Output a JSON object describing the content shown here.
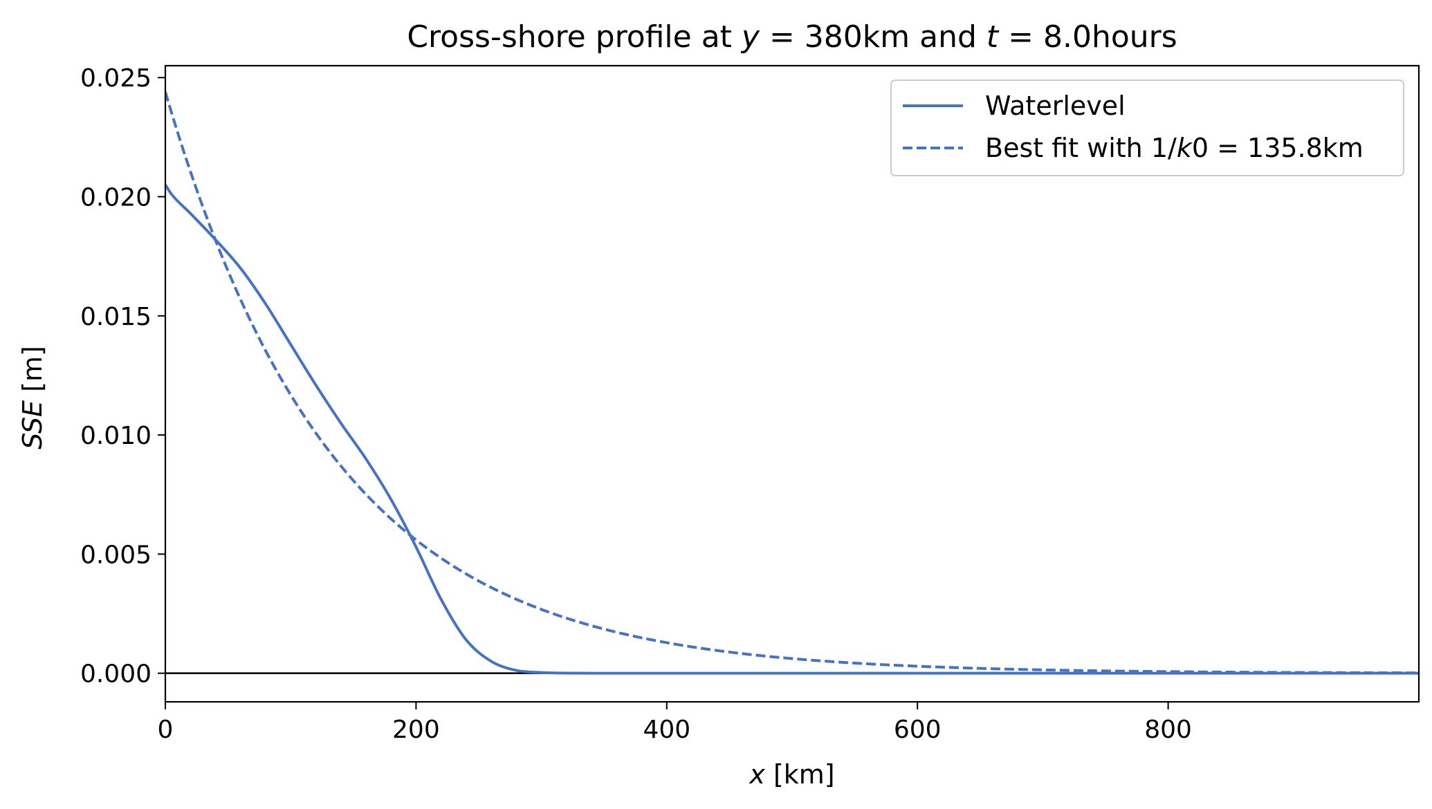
{
  "chart_data": {
    "type": "line",
    "title_parts": {
      "prefix": "Cross-shore profile at ",
      "y_var": "y",
      "y_value": " = 380km and ",
      "t_var": "t",
      "t_value": " = 8.0hours"
    },
    "xlabel_var": "x",
    "xlabel_unit": " [km]",
    "ylabel_var": "SSE",
    "ylabel_unit": " [m]",
    "xlim": [
      0,
      1000
    ],
    "ylim": [
      -0.0012,
      0.0255
    ],
    "xticks": [
      0,
      200,
      400,
      600,
      800
    ],
    "xtick_labels": [
      "0",
      "200",
      "400",
      "600",
      "800"
    ],
    "yticks": [
      0.0,
      0.005,
      0.01,
      0.015,
      0.02,
      0.025
    ],
    "ytick_labels": [
      "0.000",
      "0.005",
      "0.010",
      "0.015",
      "0.020",
      "0.025"
    ],
    "grid": false,
    "legend_position": "top-right",
    "color": "#4472C4",
    "zero_line": true,
    "series": [
      {
        "name": "Waterlevel",
        "style": "solid",
        "x": [
          0,
          5,
          20,
          40,
          60,
          80,
          100,
          120,
          140,
          160,
          180,
          200,
          220,
          240,
          260,
          280,
          300,
          320,
          340,
          400,
          500,
          600,
          700,
          800,
          900,
          1000
        ],
        "y": [
          0.0205,
          0.0201,
          0.0193,
          0.0182,
          0.017,
          0.0155,
          0.0138,
          0.0121,
          0.0105,
          0.009,
          0.0073,
          0.0053,
          0.0031,
          0.0014,
          0.0005,
          0.00012,
          3e-05,
          5e-06,
          0.0,
          0.0,
          0.0,
          0.0,
          0.0,
          0.0,
          0.0,
          0.0
        ]
      },
      {
        "name_parts": {
          "prefix": "Best fit with 1/",
          "k_var": "k",
          "suffix": "0 = 135.8km"
        },
        "style": "dashed",
        "amplitude": 0.0244,
        "decay_length": 135.8
      }
    ]
  }
}
